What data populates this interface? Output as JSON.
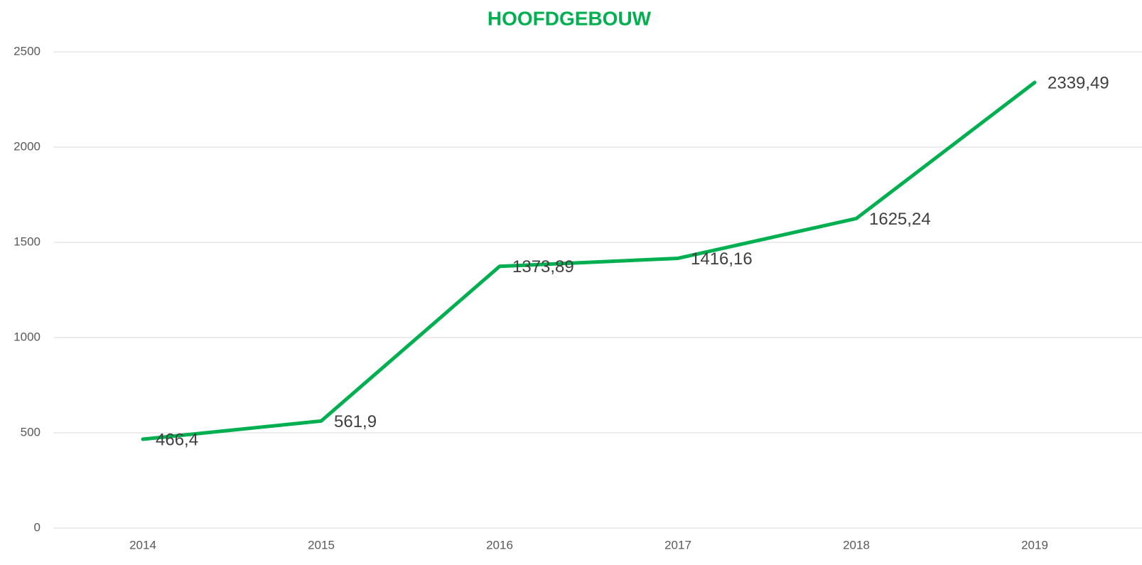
{
  "chart_data": {
    "type": "line",
    "title": "HOOFDGEBOUW",
    "categories": [
      "2014",
      "2015",
      "2016",
      "2017",
      "2018",
      "2019"
    ],
    "series": [
      {
        "name": "HOOFDGEBOUW",
        "color": "#00b050",
        "values": [
          466.4,
          561.9,
          1373.89,
          1416.16,
          1625.24,
          2339.49
        ],
        "value_labels": [
          "466,4",
          "561,9",
          "1373,89",
          "1416,16",
          "1625,24",
          "2339,49"
        ]
      }
    ],
    "ylim": [
      0,
      2500
    ],
    "yticks": [
      0,
      500,
      1000,
      1500,
      2000,
      2500
    ],
    "grid": true
  }
}
